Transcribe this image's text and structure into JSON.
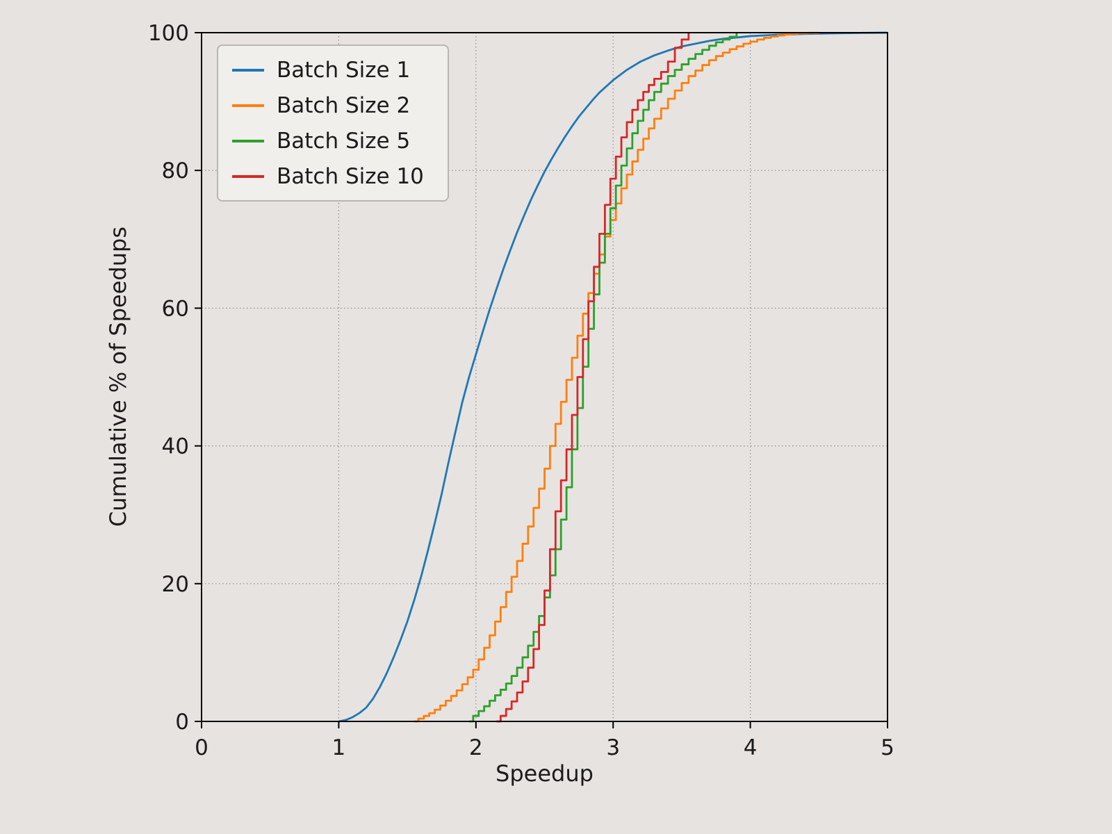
{
  "page": {
    "background": "#e7e3e0",
    "text_color": "#1b1b1b"
  },
  "chart_data": {
    "type": "line",
    "variant": "empirical-cdf",
    "title": "",
    "xlabel": "Speedup",
    "ylabel": "Cumulative % of Speedups",
    "xlim": [
      0,
      5
    ],
    "ylim": [
      0,
      100
    ],
    "xticks": [
      0,
      1,
      2,
      3,
      4,
      5
    ],
    "yticks": [
      0,
      20,
      40,
      60,
      80,
      100
    ],
    "grid": {
      "style": "dotted",
      "color": "#8e8b88"
    },
    "legend": {
      "position": "upper-left",
      "background": "#f1efec",
      "border_color": "#b9b6b2"
    },
    "series": [
      {
        "name": "Batch Size 1",
        "color": "#1f77b4",
        "step": false,
        "points": [
          [
            1.0,
            0
          ],
          [
            1.05,
            0.2
          ],
          [
            1.1,
            0.6
          ],
          [
            1.15,
            1.2
          ],
          [
            1.2,
            2
          ],
          [
            1.25,
            3.3
          ],
          [
            1.3,
            5
          ],
          [
            1.35,
            7
          ],
          [
            1.4,
            9.3
          ],
          [
            1.45,
            11.8
          ],
          [
            1.5,
            14.5
          ],
          [
            1.55,
            17.6
          ],
          [
            1.6,
            21
          ],
          [
            1.65,
            24.8
          ],
          [
            1.7,
            28.8
          ],
          [
            1.75,
            33
          ],
          [
            1.8,
            37.6
          ],
          [
            1.85,
            42
          ],
          [
            1.9,
            46.3
          ],
          [
            1.95,
            50
          ],
          [
            2.0,
            53.3
          ],
          [
            2.05,
            56.6
          ],
          [
            2.1,
            59.8
          ],
          [
            2.15,
            62.8
          ],
          [
            2.2,
            65.7
          ],
          [
            2.25,
            68.4
          ],
          [
            2.3,
            71
          ],
          [
            2.35,
            73.4
          ],
          [
            2.4,
            75.7
          ],
          [
            2.45,
            77.8
          ],
          [
            2.5,
            79.8
          ],
          [
            2.55,
            81.6
          ],
          [
            2.6,
            83.3
          ],
          [
            2.65,
            84.9
          ],
          [
            2.7,
            86.4
          ],
          [
            2.75,
            87.8
          ],
          [
            2.8,
            89
          ],
          [
            2.85,
            90.2
          ],
          [
            2.9,
            91.3
          ],
          [
            2.95,
            92.2
          ],
          [
            3.0,
            93.1
          ],
          [
            3.1,
            94.6
          ],
          [
            3.2,
            95.8
          ],
          [
            3.3,
            96.7
          ],
          [
            3.4,
            97.4
          ],
          [
            3.5,
            98
          ],
          [
            3.6,
            98.4
          ],
          [
            3.7,
            98.8
          ],
          [
            3.8,
            99.1
          ],
          [
            3.9,
            99.3
          ],
          [
            4.0,
            99.5
          ],
          [
            4.2,
            99.7
          ],
          [
            4.4,
            99.82
          ],
          [
            4.6,
            99.9
          ],
          [
            4.8,
            99.96
          ],
          [
            5.0,
            100
          ]
        ]
      },
      {
        "name": "Batch Size 2",
        "color": "#ff7f0e",
        "step": true,
        "points": [
          [
            1.55,
            0
          ],
          [
            1.58,
            0.4
          ],
          [
            1.62,
            0.8
          ],
          [
            1.66,
            1.2
          ],
          [
            1.7,
            1.7
          ],
          [
            1.74,
            2.3
          ],
          [
            1.78,
            3
          ],
          [
            1.82,
            3.7
          ],
          [
            1.86,
            4.5
          ],
          [
            1.9,
            5.4
          ],
          [
            1.94,
            6.4
          ],
          [
            1.98,
            7.5
          ],
          [
            2.02,
            9
          ],
          [
            2.06,
            10.7
          ],
          [
            2.1,
            12.5
          ],
          [
            2.14,
            14.5
          ],
          [
            2.18,
            16.6
          ],
          [
            2.22,
            18.8
          ],
          [
            2.26,
            21
          ],
          [
            2.3,
            23.3
          ],
          [
            2.34,
            25.8
          ],
          [
            2.38,
            28.3
          ],
          [
            2.42,
            31
          ],
          [
            2.46,
            33.8
          ],
          [
            2.5,
            36.7
          ],
          [
            2.54,
            40
          ],
          [
            2.58,
            43.2
          ],
          [
            2.62,
            46.4
          ],
          [
            2.66,
            49.6
          ],
          [
            2.7,
            52.8
          ],
          [
            2.74,
            56
          ],
          [
            2.78,
            59.2
          ],
          [
            2.82,
            62.2
          ],
          [
            2.86,
            65
          ],
          [
            2.9,
            67.8
          ],
          [
            2.94,
            70.4
          ],
          [
            2.98,
            72.8
          ],
          [
            3.02,
            75.2
          ],
          [
            3.06,
            77.4
          ],
          [
            3.1,
            79.4
          ],
          [
            3.14,
            81.3
          ],
          [
            3.18,
            83
          ],
          [
            3.22,
            84.6
          ],
          [
            3.26,
            86.1
          ],
          [
            3.3,
            87.5
          ],
          [
            3.35,
            89
          ],
          [
            3.4,
            90.4
          ],
          [
            3.45,
            91.6
          ],
          [
            3.5,
            92.7
          ],
          [
            3.55,
            93.7
          ],
          [
            3.6,
            94.5
          ],
          [
            3.65,
            95.3
          ],
          [
            3.7,
            96
          ],
          [
            3.75,
            96.6
          ],
          [
            3.8,
            97.1
          ],
          [
            3.85,
            97.6
          ],
          [
            3.9,
            98
          ],
          [
            3.95,
            98.4
          ],
          [
            4.0,
            98.7
          ],
          [
            4.05,
            99
          ],
          [
            4.1,
            99.25
          ],
          [
            4.15,
            99.45
          ],
          [
            4.2,
            99.6
          ],
          [
            4.25,
            99.75
          ],
          [
            4.3,
            99.85
          ],
          [
            4.35,
            99.92
          ],
          [
            4.42,
            99.97
          ],
          [
            4.5,
            100
          ]
        ]
      },
      {
        "name": "Batch Size 5",
        "color": "#2ca02c",
        "step": true,
        "points": [
          [
            1.95,
            0
          ],
          [
            1.98,
            0.8
          ],
          [
            2.02,
            1.5
          ],
          [
            2.06,
            2.2
          ],
          [
            2.1,
            3
          ],
          [
            2.14,
            3.8
          ],
          [
            2.18,
            4.6
          ],
          [
            2.22,
            5.5
          ],
          [
            2.26,
            6.6
          ],
          [
            2.3,
            7.8
          ],
          [
            2.34,
            9.3
          ],
          [
            2.38,
            11
          ],
          [
            2.42,
            13
          ],
          [
            2.46,
            15.3
          ],
          [
            2.5,
            18
          ],
          [
            2.54,
            21.2
          ],
          [
            2.58,
            25
          ],
          [
            2.62,
            29.3
          ],
          [
            2.66,
            34
          ],
          [
            2.7,
            39.5
          ],
          [
            2.74,
            45.5
          ],
          [
            2.78,
            51.5
          ],
          [
            2.82,
            57
          ],
          [
            2.86,
            62
          ],
          [
            2.9,
            66.6
          ],
          [
            2.94,
            70.8
          ],
          [
            2.98,
            74.5
          ],
          [
            3.02,
            77.8
          ],
          [
            3.06,
            80.7
          ],
          [
            3.1,
            83.2
          ],
          [
            3.14,
            85.4
          ],
          [
            3.18,
            87.2
          ],
          [
            3.22,
            88.8
          ],
          [
            3.26,
            90.2
          ],
          [
            3.3,
            91.4
          ],
          [
            3.35,
            92.6
          ],
          [
            3.4,
            93.7
          ],
          [
            3.45,
            94.6
          ],
          [
            3.5,
            95.4
          ],
          [
            3.55,
            96.2
          ],
          [
            3.6,
            96.9
          ],
          [
            3.65,
            97.5
          ],
          [
            3.7,
            98.1
          ],
          [
            3.75,
            98.6
          ],
          [
            3.8,
            99
          ],
          [
            3.85,
            99.4
          ],
          [
            3.9,
            100
          ]
        ]
      },
      {
        "name": "Batch Size 10",
        "color": "#d62728",
        "step": true,
        "points": [
          [
            2.15,
            0
          ],
          [
            2.18,
            0.8
          ],
          [
            2.22,
            1.8
          ],
          [
            2.26,
            2.9
          ],
          [
            2.3,
            4.2
          ],
          [
            2.34,
            5.8
          ],
          [
            2.38,
            7.8
          ],
          [
            2.42,
            10.5
          ],
          [
            2.46,
            14
          ],
          [
            2.5,
            19
          ],
          [
            2.54,
            25
          ],
          [
            2.58,
            30.5
          ],
          [
            2.62,
            35
          ],
          [
            2.66,
            39.5
          ],
          [
            2.7,
            44.5
          ],
          [
            2.74,
            50
          ],
          [
            2.78,
            55.5
          ],
          [
            2.82,
            61
          ],
          [
            2.86,
            66
          ],
          [
            2.9,
            70.8
          ],
          [
            2.94,
            75
          ],
          [
            2.98,
            78.8
          ],
          [
            3.02,
            82
          ],
          [
            3.06,
            84.8
          ],
          [
            3.1,
            87
          ],
          [
            3.14,
            88.8
          ],
          [
            3.18,
            90.2
          ],
          [
            3.22,
            91.4
          ],
          [
            3.26,
            92.4
          ],
          [
            3.3,
            93.3
          ],
          [
            3.35,
            94.3
          ],
          [
            3.4,
            95.8
          ],
          [
            3.45,
            97.8
          ],
          [
            3.5,
            99
          ],
          [
            3.55,
            100
          ]
        ]
      }
    ]
  }
}
